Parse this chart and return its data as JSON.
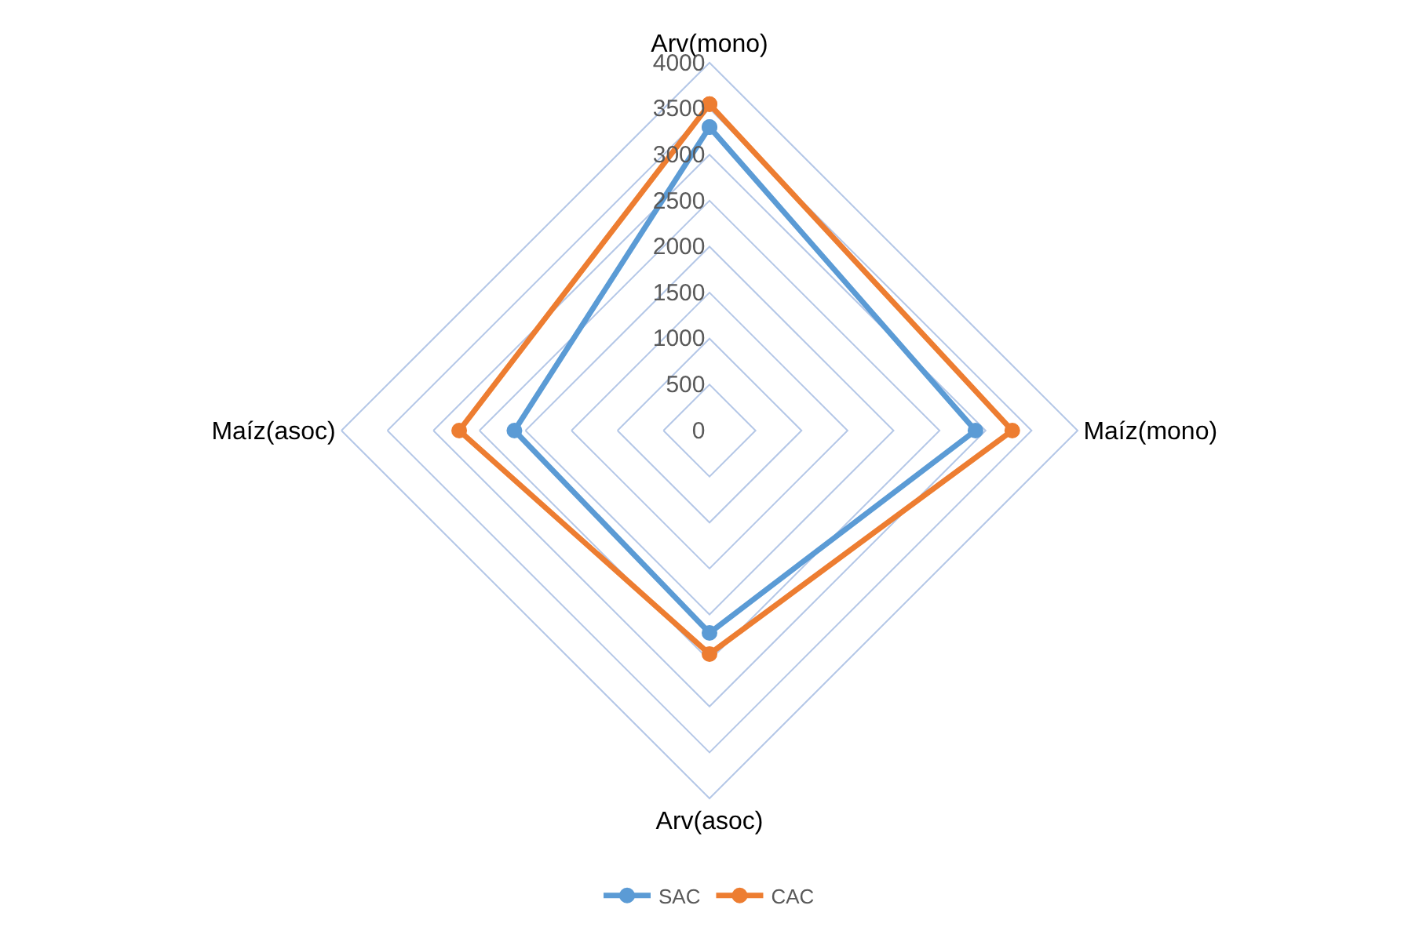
{
  "chart_data": {
    "type": "radar",
    "categories": [
      "Arv(mono)",
      "Maíz(mono)",
      "Arv(asoc)",
      "Maíz(asoc)"
    ],
    "series": [
      {
        "name": "SAC",
        "color": "#5b9bd5",
        "values": [
          3300,
          2890,
          2200,
          2120
        ]
      },
      {
        "name": "CAC",
        "color": "#ed7d31",
        "values": [
          3550,
          3290,
          2430,
          2720
        ]
      }
    ],
    "ylim": [
      0,
      4000
    ],
    "yticks": [
      0,
      500,
      1000,
      1500,
      2000,
      2500,
      3000,
      3500,
      4000
    ],
    "grid": true,
    "legend": "bottom",
    "marker": "circle",
    "line_style": "solid"
  }
}
